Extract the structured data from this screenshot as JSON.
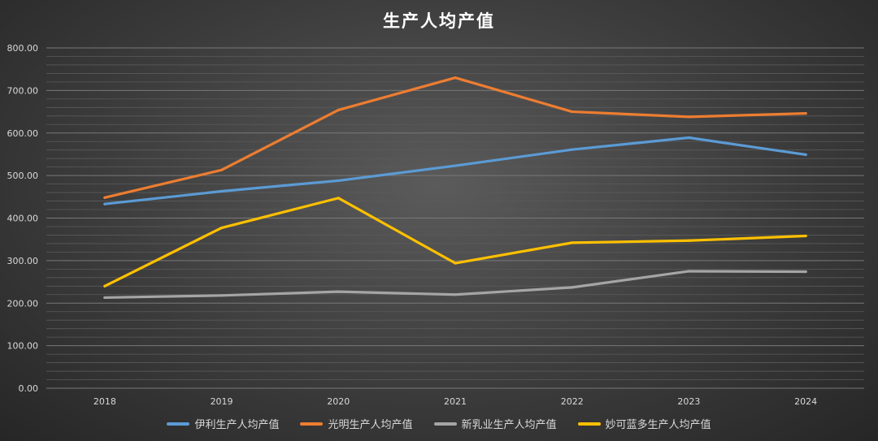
{
  "chart_data": {
    "type": "line",
    "title": "生产人均产值",
    "x": [
      "2018",
      "2019",
      "2020",
      "2021",
      "2022",
      "2023",
      "2024"
    ],
    "ylim": [
      0,
      800
    ],
    "yticks": [
      "0.00",
      "100.00",
      "200.00",
      "300.00",
      "400.00",
      "500.00",
      "600.00",
      "700.00",
      "800.00"
    ],
    "grid": true,
    "legend_position": "bottom",
    "series": [
      {
        "name": "伊利生产人均产值",
        "color": "#5b9bd5",
        "values": [
          433,
          463,
          488,
          523,
          561,
          589,
          549
        ]
      },
      {
        "name": "光明生产人均产值",
        "color": "#ed7d31",
        "values": [
          448,
          513,
          654,
          730,
          650,
          638,
          646
        ]
      },
      {
        "name": "新乳业生产人均产值",
        "color": "#a5a5a5",
        "values": [
          213,
          218,
          227,
          220,
          237,
          275,
          274
        ]
      },
      {
        "name": "妙可蓝多生产人均产值",
        "color": "#ffc000",
        "values": [
          240,
          377,
          447,
          294,
          342,
          347,
          358
        ]
      }
    ]
  }
}
